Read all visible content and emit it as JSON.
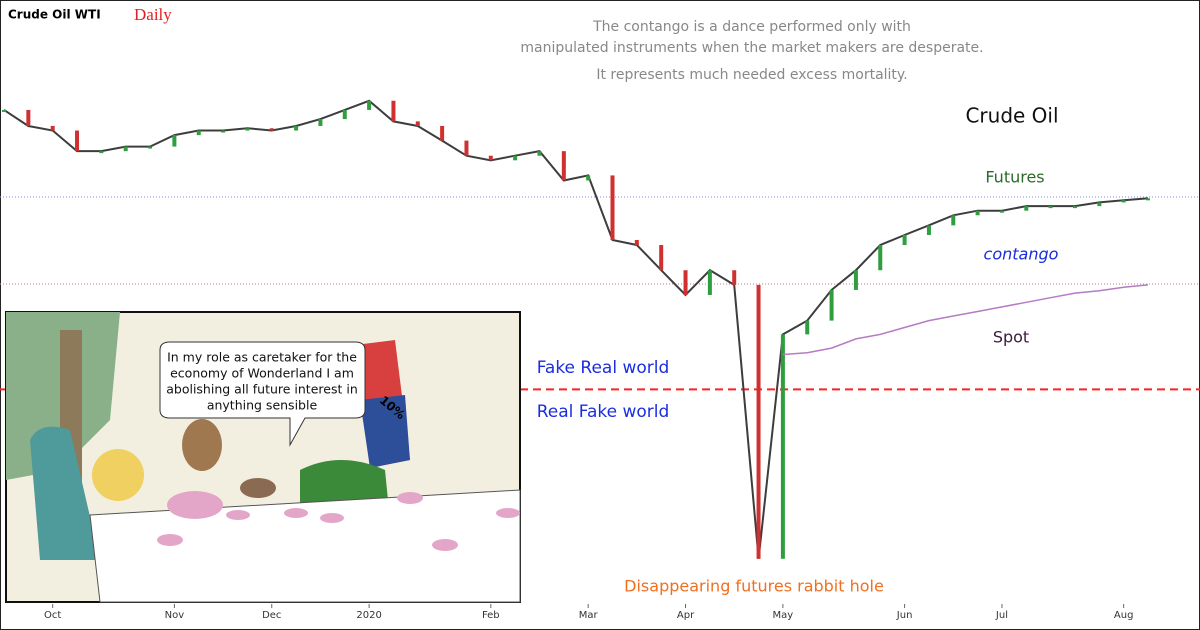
{
  "chart_data": {
    "type": "line",
    "title": "Crude Oil WTI",
    "subtitle": "Daily",
    "quote": [
      "The contango is a dance performed only with",
      "manipulated instruments when the market makers are desperate.",
      "It represents much needed excess mortality."
    ],
    "annotations": {
      "name": "Crude Oil",
      "futures": "Futures",
      "contango": "contango",
      "spot": "Spot",
      "above": "Fake Real world",
      "below": "Real Fake world",
      "hole": "Disappearing futures rabbit hole"
    },
    "speech_bubble": [
      "In my role as caretaker for the",
      "economy of Wonderland I am",
      "abolishing all future interest in",
      "anything sensible"
    ],
    "hat_label": "10%",
    "categories": [
      null,
      null,
      "Oct",
      null,
      null,
      null,
      null,
      "Nov",
      null,
      null,
      null,
      "Dec",
      null,
      null,
      null,
      "2020",
      null,
      null,
      null,
      null,
      "Feb",
      null,
      null,
      null,
      "Mar",
      null,
      null,
      null,
      "Apr",
      null,
      null,
      null,
      "May",
      null,
      null,
      null,
      null,
      "Jun",
      null,
      null,
      null,
      "Jul",
      null,
      null,
      null,
      null,
      "Aug",
      null
    ],
    "series": [
      {
        "name": "Futures",
        "color": "#3d3d3d",
        "values": [
          61,
          57.5,
          56.5,
          52,
          52,
          53,
          53,
          55.5,
          56.5,
          56.5,
          57,
          56.5,
          57.5,
          59,
          61,
          63,
          58.5,
          57.5,
          54.3,
          51,
          50,
          51,
          52,
          45.6,
          46.7,
          32.6,
          31.5,
          26,
          20.6,
          26,
          22.8,
          -37,
          12,
          15,
          21.7,
          26,
          31.5,
          33.7,
          35.8,
          38,
          39,
          39,
          40,
          40,
          40,
          40.8,
          41.3,
          41.7
        ]
      },
      {
        "name": "Spot",
        "color": "#b57bc4",
        "values": [
          null,
          null,
          null,
          null,
          null,
          null,
          null,
          null,
          null,
          null,
          null,
          null,
          null,
          null,
          null,
          null,
          null,
          null,
          null,
          null,
          null,
          null,
          null,
          null,
          null,
          null,
          null,
          null,
          null,
          null,
          null,
          null,
          7.6,
          8,
          9,
          11,
          12,
          13.5,
          15,
          16,
          17,
          18,
          19,
          20,
          21,
          21.5,
          22.3,
          22.8
        ]
      }
    ],
    "hlines": [
      {
        "value": 42,
        "color": "#7a8de0",
        "style": "dotted"
      },
      {
        "value": 23,
        "color": "#b88080",
        "style": "dotted"
      },
      {
        "value": 0,
        "color": "#ff2020",
        "style": "dashed"
      }
    ],
    "ylim": [
      -46,
      85
    ]
  }
}
